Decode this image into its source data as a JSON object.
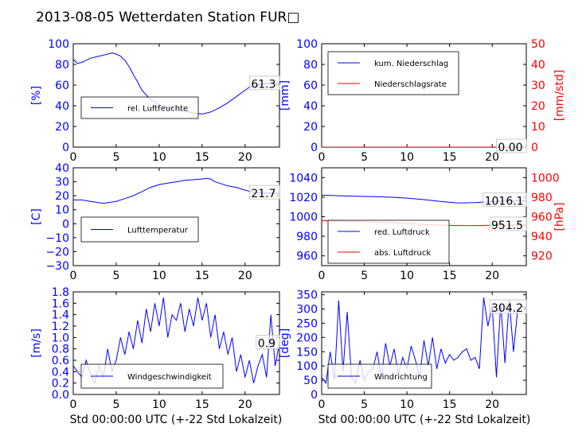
{
  "title": "2013-08-05 Wetterdaten Station FUR□",
  "xlabel": "Std 00:00:00 UTC (+-22 Std Lokalzeit)",
  "colors": {
    "left_axis": "#0000ff",
    "right_axis": "#ff0000",
    "series_blue": "#0000ff",
    "series_red": "#ff0000",
    "annotation_box": "#c0c0c0"
  },
  "chart_data": [
    {
      "id": "humidity",
      "type": "line",
      "xlim": [
        0,
        24
      ],
      "ylim": [
        0,
        100
      ],
      "xticks": [
        "0",
        "5",
        "10",
        "15",
        "20"
      ],
      "yticks": [
        "0",
        "20",
        "40",
        "60",
        "80",
        "100"
      ],
      "ylabel": "[%]",
      "series": [
        {
          "name": "rel. Luftfeuchte",
          "color": "#0000ff",
          "x": [
            0,
            0.5,
            1,
            2,
            3,
            4,
            4.5,
            5,
            5.5,
            6,
            6.5,
            7,
            7.5,
            8,
            9,
            10,
            11,
            12,
            13,
            14,
            15,
            15.5,
            16,
            16.5,
            17,
            18,
            19,
            20,
            20.5,
            21,
            21.5,
            22,
            23,
            24
          ],
          "y": [
            85,
            81,
            82,
            86,
            88,
            90,
            91,
            90,
            88,
            84,
            78,
            70,
            63,
            55,
            46,
            41,
            38,
            37,
            35,
            33,
            32,
            33,
            34,
            36,
            38,
            43,
            49,
            55,
            58,
            59,
            60,
            61,
            62,
            61
          ]
        }
      ],
      "annotation": "61.3",
      "legend": "lower-left"
    },
    {
      "id": "precip",
      "type": "line",
      "xlim": [
        0,
        24
      ],
      "ylim": [
        0,
        100
      ],
      "ylim_right": [
        0,
        50
      ],
      "xticks": [
        "0",
        "5",
        "10",
        "15",
        "20"
      ],
      "yticks": [
        "0",
        "20",
        "40",
        "60",
        "80",
        "100"
      ],
      "yticks_right": [
        "0",
        "10",
        "20",
        "30",
        "40",
        "50"
      ],
      "ylabel": "[mm]",
      "ylabel_right": "[mm/std]",
      "series": [
        {
          "name": "kum. Niederschlag",
          "color": "#0000ff",
          "axis": "left",
          "x": [
            0,
            24
          ],
          "y": [
            0,
            0
          ]
        },
        {
          "name": "Niederschlagsrate",
          "color": "#ff0000",
          "axis": "right",
          "x": [
            0,
            24
          ],
          "y": [
            0,
            0
          ]
        }
      ],
      "annotation": "0.00",
      "legend": "upper-left"
    },
    {
      "id": "temperature",
      "type": "line",
      "xlim": [
        0,
        24
      ],
      "ylim": [
        -30,
        40
      ],
      "xticks": [
        "0",
        "5",
        "10",
        "15",
        "20"
      ],
      "yticks": [
        "−30",
        "−20",
        "−10",
        "0",
        "10",
        "20",
        "30",
        "40"
      ],
      "ylabel": "[C]",
      "series": [
        {
          "name": "Lufttemperatur",
          "color": "#0000ff",
          "x": [
            0,
            1,
            2,
            3,
            3.5,
            4,
            5,
            6,
            7,
            8,
            9,
            10,
            11,
            12,
            13,
            14,
            15,
            15.5,
            16,
            16.5,
            17,
            18,
            19,
            20,
            21,
            22,
            23,
            24
          ],
          "y": [
            17,
            17,
            16,
            15,
            14.5,
            15,
            16,
            18,
            20,
            23,
            26,
            28,
            29,
            30,
            31,
            31.5,
            32,
            32.5,
            32,
            30,
            29,
            27,
            26,
            24,
            22.5,
            22,
            21.8,
            21.7
          ]
        }
      ],
      "annotation": "21.7",
      "legend": "lower-left"
    },
    {
      "id": "pressure",
      "type": "line",
      "xlim": [
        0,
        24
      ],
      "ylim": [
        950,
        1050
      ],
      "ylim_right": [
        910,
        1010
      ],
      "xticks": [
        "0",
        "5",
        "10",
        "15",
        "20"
      ],
      "yticks": [
        "960",
        "980",
        "1000",
        "1020",
        "1040"
      ],
      "yticks_right": [
        "920",
        "940",
        "960",
        "980",
        "1000"
      ],
      "ylabel_right": "[hPa]",
      "series": [
        {
          "name": "red. Luftdruck",
          "color": "#0000ff",
          "axis": "left",
          "x": [
            0,
            2,
            4,
            6,
            8,
            10,
            12,
            14,
            16,
            18,
            20,
            22,
            24
          ],
          "y": [
            1022,
            1021.5,
            1021,
            1020.5,
            1020,
            1019,
            1017.5,
            1015.5,
            1014,
            1014.5,
            1015.5,
            1016,
            1016.1
          ]
        },
        {
          "name": "abs. Luftdruck",
          "color": "#ff0000",
          "axis": "right",
          "x": [
            0,
            2,
            4,
            6,
            8,
            10,
            12,
            14,
            16,
            18,
            20,
            22,
            24
          ],
          "y": [
            956,
            955.5,
            955,
            954.5,
            954,
            953,
            952,
            951.5,
            951,
            951,
            951.2,
            951.4,
            951.5
          ]
        }
      ],
      "annotations": [
        "1016.1",
        "951.5"
      ],
      "legend": "lower-left"
    },
    {
      "id": "windspeed",
      "type": "line",
      "xlim": [
        0,
        24
      ],
      "ylim": [
        0,
        1.8
      ],
      "xticks": [
        "0",
        "5",
        "10",
        "15",
        "20"
      ],
      "yticks": [
        "0.0",
        "0.2",
        "0.4",
        "0.6",
        "0.8",
        "1.0",
        "1.2",
        "1.4",
        "1.6",
        "1.8"
      ],
      "ylabel": "[m/s]",
      "series": [
        {
          "name": "Windgeschwindigkeit",
          "color": "#0000ff",
          "x": [
            0,
            0.5,
            1,
            1.5,
            2,
            2.5,
            3,
            3.5,
            4,
            4.5,
            5,
            5.5,
            6,
            6.5,
            7,
            7.5,
            8,
            8.5,
            9,
            9.5,
            10,
            10.5,
            11,
            11.5,
            12,
            12.5,
            13,
            13.5,
            14,
            14.5,
            15,
            15.5,
            16,
            16.5,
            17,
            17.5,
            18,
            18.5,
            19,
            19.5,
            20,
            20.5,
            21,
            21.5,
            22,
            22.5,
            23,
            23.5,
            24
          ],
          "y": [
            0.5,
            0.4,
            0.3,
            0.6,
            0.35,
            0.2,
            0.5,
            0.3,
            0.8,
            0.4,
            0.6,
            1.0,
            0.7,
            1.1,
            0.8,
            1.3,
            0.9,
            1.5,
            1.1,
            1.6,
            1.2,
            1.7,
            1.0,
            1.4,
            1.3,
            1.6,
            1.1,
            1.5,
            1.2,
            1.7,
            1.3,
            1.6,
            1.0,
            1.4,
            0.8,
            1.1,
            0.7,
            1.0,
            0.4,
            0.7,
            0.3,
            0.6,
            0.2,
            0.5,
            0.7,
            0.3,
            1.4,
            0.5,
            0.9
          ]
        }
      ],
      "annotation": "0.9",
      "legend": "lower-left"
    },
    {
      "id": "winddir",
      "type": "line",
      "xlim": [
        0,
        24
      ],
      "ylim": [
        0,
        360
      ],
      "xticks": [
        "0",
        "5",
        "10",
        "15",
        "20"
      ],
      "yticks": [
        "0",
        "50",
        "100",
        "150",
        "200",
        "250",
        "300",
        "350"
      ],
      "ylabel": "[deg]",
      "series": [
        {
          "name": "Windrichtung",
          "color": "#0000ff",
          "x": [
            0,
            0.5,
            1,
            1.5,
            2,
            2.5,
            3,
            3.5,
            4,
            4.5,
            5,
            5.5,
            6,
            6.5,
            7,
            7.5,
            8,
            8.5,
            9,
            9.5,
            10,
            10.5,
            11,
            11.5,
            12,
            12.5,
            13,
            13.5,
            14,
            14.5,
            15,
            15.5,
            16,
            16.5,
            17,
            17.5,
            18,
            18.5,
            19,
            19.5,
            20,
            20.5,
            21,
            21.5,
            22,
            22.5,
            23,
            23.5,
            24
          ],
          "y": [
            60,
            40,
            150,
            50,
            330,
            80,
            290,
            60,
            40,
            120,
            50,
            80,
            90,
            150,
            60,
            180,
            100,
            160,
            70,
            130,
            90,
            170,
            120,
            60,
            190,
            100,
            200,
            90,
            160,
            110,
            140,
            120,
            130,
            150,
            160,
            120,
            130,
            90,
            340,
            240,
            310,
            60,
            320,
            110,
            330,
            150,
            300,
            310,
            304
          ]
        }
      ],
      "annotation": "304.2",
      "legend": "lower-left"
    }
  ]
}
